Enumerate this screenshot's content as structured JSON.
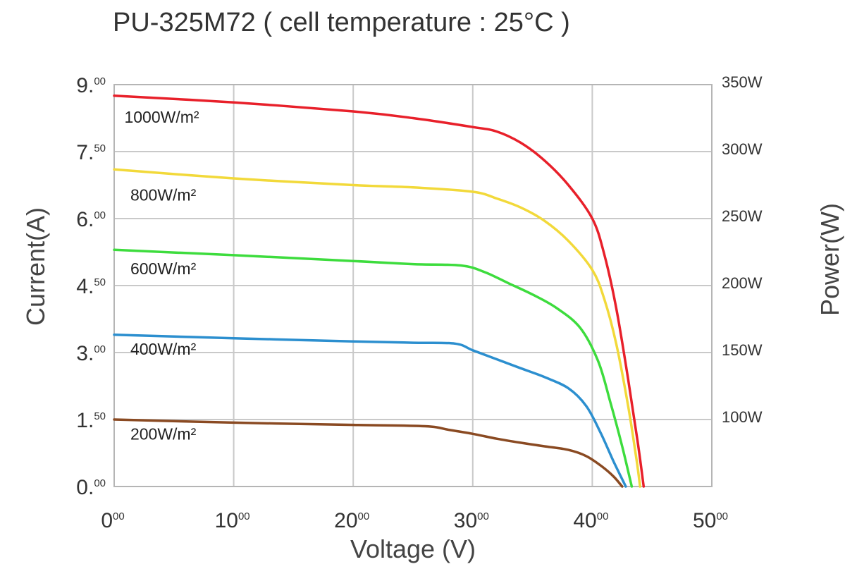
{
  "chart_data": {
    "type": "line",
    "title": "PU-325M72 ( cell temperature : 25°C )",
    "xlabel": "Voltage (V)",
    "ylabel": "Current(A)",
    "y2label": "Power(W)",
    "xlim": [
      0,
      50
    ],
    "ylim": [
      0,
      9
    ],
    "y2lim": [
      50,
      350
    ],
    "grid": true,
    "x_ticks": [
      {
        "value": 0,
        "main": "0",
        "sup": "00"
      },
      {
        "value": 10,
        "main": "10",
        "sup": "00"
      },
      {
        "value": 20,
        "main": "20",
        "sup": "00"
      },
      {
        "value": 30,
        "main": "30",
        "sup": "00"
      },
      {
        "value": 40,
        "main": "40",
        "sup": "00"
      },
      {
        "value": 50,
        "main": "50",
        "sup": "00"
      }
    ],
    "y_ticks": [
      {
        "value": 0,
        "main": "0.",
        "sup": "00"
      },
      {
        "value": 1.5,
        "main": "1.",
        "sup": "50"
      },
      {
        "value": 3,
        "main": "3.",
        "sup": "00"
      },
      {
        "value": 4.5,
        "main": "4.",
        "sup": "50"
      },
      {
        "value": 6,
        "main": "6.",
        "sup": "00"
      },
      {
        "value": 7.5,
        "main": "7.",
        "sup": "50"
      },
      {
        "value": 9,
        "main": "9.",
        "sup": "00"
      }
    ],
    "y2_ticks": [
      {
        "value": 100,
        "label": "100W"
      },
      {
        "value": 150,
        "label": "150W"
      },
      {
        "value": 200,
        "label": "200W"
      },
      {
        "value": 250,
        "label": "250W"
      },
      {
        "value": 300,
        "label": "300W"
      },
      {
        "value": 350,
        "label": "350W"
      }
    ],
    "series": [
      {
        "name": "1000W/m²",
        "color": "#e8202a",
        "label_at": [
          0.5,
          8.15
        ],
        "points": [
          [
            0,
            8.75
          ],
          [
            10,
            8.6
          ],
          [
            20,
            8.4
          ],
          [
            25,
            8.25
          ],
          [
            30,
            8.05
          ],
          [
            32,
            7.95
          ],
          [
            34,
            7.7
          ],
          [
            36,
            7.3
          ],
          [
            38,
            6.75
          ],
          [
            40,
            6.0
          ],
          [
            41,
            5.2
          ],
          [
            42,
            4.0
          ],
          [
            43,
            2.4
          ],
          [
            43.8,
            1.0
          ],
          [
            44.3,
            0
          ]
        ]
      },
      {
        "name": "800W/m²",
        "color": "#f2d93a",
        "label_at": [
          1,
          6.4
        ],
        "points": [
          [
            0,
            7.1
          ],
          [
            10,
            6.9
          ],
          [
            20,
            6.75
          ],
          [
            25,
            6.7
          ],
          [
            30,
            6.6
          ],
          [
            32,
            6.45
          ],
          [
            34,
            6.25
          ],
          [
            36,
            5.95
          ],
          [
            38,
            5.5
          ],
          [
            40,
            4.85
          ],
          [
            41,
            4.2
          ],
          [
            42,
            3.2
          ],
          [
            43,
            1.8
          ],
          [
            43.7,
            0.6
          ],
          [
            44.0,
            0
          ]
        ]
      },
      {
        "name": "600W/m²",
        "color": "#3ddc3d",
        "label_at": [
          1,
          4.75
        ],
        "points": [
          [
            0,
            5.3
          ],
          [
            10,
            5.18
          ],
          [
            20,
            5.05
          ],
          [
            25,
            4.98
          ],
          [
            29,
            4.95
          ],
          [
            31,
            4.8
          ],
          [
            33,
            4.55
          ],
          [
            35,
            4.3
          ],
          [
            37,
            4.0
          ],
          [
            39,
            3.55
          ],
          [
            40.5,
            2.8
          ],
          [
            41.5,
            1.9
          ],
          [
            42.5,
            0.9
          ],
          [
            43.3,
            0
          ]
        ]
      },
      {
        "name": "400W/m²",
        "color": "#2c8fcf",
        "label_at": [
          1,
          2.95
        ],
        "points": [
          [
            0,
            3.4
          ],
          [
            10,
            3.32
          ],
          [
            20,
            3.25
          ],
          [
            25,
            3.22
          ],
          [
            28.5,
            3.2
          ],
          [
            30,
            3.05
          ],
          [
            32,
            2.85
          ],
          [
            34,
            2.65
          ],
          [
            36,
            2.45
          ],
          [
            38,
            2.2
          ],
          [
            39.5,
            1.8
          ],
          [
            40.7,
            1.2
          ],
          [
            41.8,
            0.55
          ],
          [
            42.8,
            0
          ]
        ]
      },
      {
        "name": "200W/m²",
        "color": "#8a4a22",
        "label_at": [
          1,
          1.05
        ],
        "points": [
          [
            0,
            1.5
          ],
          [
            10,
            1.43
          ],
          [
            20,
            1.38
          ],
          [
            26,
            1.35
          ],
          [
            28,
            1.27
          ],
          [
            30,
            1.18
          ],
          [
            32,
            1.07
          ],
          [
            34,
            0.98
          ],
          [
            36,
            0.9
          ],
          [
            38,
            0.82
          ],
          [
            39.5,
            0.68
          ],
          [
            40.8,
            0.45
          ],
          [
            41.8,
            0.22
          ],
          [
            42.5,
            0
          ]
        ]
      }
    ]
  }
}
